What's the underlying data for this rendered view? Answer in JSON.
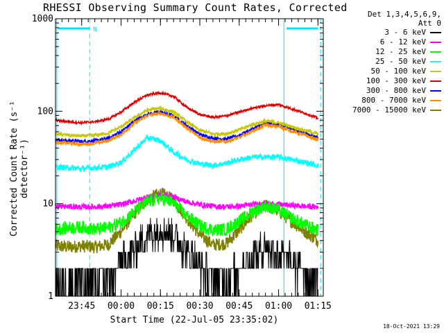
{
  "chart_data": {
    "type": "line",
    "title": "RHESSI Observing Summary Count Rates, Corrected",
    "xlabel": "Start Time (22-Jul-05 23:35:02)",
    "ylabel": "Corrected Count Rate (s⁻¹ detector⁻¹)",
    "y_scale": "log",
    "ylim": [
      1,
      1000
    ],
    "y_ticks": [
      1,
      10,
      100,
      1000
    ],
    "y_tick_labels": [
      "1",
      "10",
      "100",
      "1000"
    ],
    "xlim_minutes": [
      0,
      102
    ],
    "x_ticks": [
      {
        "label": "23:45",
        "minute": 9.97
      },
      {
        "label": "00:00",
        "minute": 24.97
      },
      {
        "label": "00:15",
        "minute": 39.97
      },
      {
        "label": "00:30",
        "minute": 54.97
      },
      {
        "label": "00:45",
        "minute": 69.97
      },
      {
        "label": "01:00",
        "minute": 84.97
      },
      {
        "label": "01:15",
        "minute": 99.97
      }
    ],
    "legend_header": [
      "Det 1,3,4,5,6,9,",
      "Att 0"
    ],
    "markers": {
      "cyan_dashed_lines_minutes": [
        13,
        101
      ],
      "cyan_solid_lines_minutes": [
        0.5,
        87
      ],
      "top_bars": [
        [
          1,
          13
        ],
        [
          88,
          100
        ]
      ],
      "marker_label": "N",
      "color": "#00e0ff"
    },
    "series": [
      {
        "name": "3 - 6 keV",
        "color": "#000000",
        "x": [
          0,
          5,
          10,
          15,
          20,
          25,
          30,
          35,
          40,
          45,
          50,
          55,
          60,
          65,
          70,
          75,
          80,
          85,
          90,
          95,
          100
        ],
        "y": [
          1.5,
          1.4,
          1.6,
          1.4,
          1.6,
          2.2,
          3.2,
          4.5,
          5.3,
          4.6,
          3.2,
          2.2,
          1.6,
          1.5,
          2.0,
          2.7,
          3.4,
          2.9,
          2.3,
          1.8,
          1.5
        ]
      },
      {
        "name": "6 - 12 keV",
        "color": "#ff00ff",
        "x": [
          0,
          5,
          10,
          15,
          20,
          25,
          30,
          35,
          40,
          45,
          50,
          55,
          60,
          65,
          70,
          75,
          80,
          85,
          90,
          95,
          100
        ],
        "y": [
          9.4,
          9.3,
          9.2,
          9.3,
          9.4,
          9.8,
          10.7,
          11.8,
          12.5,
          11.8,
          10.5,
          9.8,
          9.4,
          9.3,
          9.4,
          9.8,
          10.1,
          9.8,
          9.6,
          9.4,
          9.2
        ]
      },
      {
        "name": "12 - 25 keV",
        "color": "#00ff00",
        "x": [
          0,
          5,
          10,
          15,
          20,
          25,
          30,
          35,
          40,
          45,
          50,
          55,
          60,
          65,
          70,
          75,
          80,
          85,
          90,
          95,
          100
        ],
        "y": [
          5.3,
          5.5,
          5.6,
          5.3,
          5.5,
          6.3,
          8.2,
          10.5,
          11.5,
          10.2,
          7.4,
          5.8,
          5.2,
          5.3,
          6.5,
          8.2,
          9.5,
          8.6,
          7.0,
          5.9,
          5.2
        ]
      },
      {
        "name": "25 - 50 keV",
        "color": "#00ffff",
        "x": [
          0,
          5,
          10,
          15,
          20,
          25,
          30,
          35,
          40,
          45,
          50,
          55,
          60,
          65,
          70,
          75,
          80,
          85,
          90,
          95,
          100
        ],
        "y": [
          25,
          24.5,
          24,
          24.5,
          25,
          28,
          38,
          52,
          48,
          36,
          30,
          27,
          26,
          27.5,
          30,
          32,
          32,
          32,
          30,
          28,
          26
        ]
      },
      {
        "name": "50 - 100 keV",
        "color": "#c8c800",
        "x": [
          0,
          5,
          10,
          15,
          20,
          25,
          30,
          35,
          40,
          45,
          50,
          55,
          60,
          65,
          70,
          75,
          80,
          85,
          90,
          95,
          100
        ],
        "y": [
          57,
          55,
          54,
          55,
          58,
          68,
          85,
          103,
          108,
          98,
          77,
          62,
          57,
          57,
          63,
          72,
          78,
          75,
          68,
          62,
          57
        ]
      },
      {
        "name": "100 - 300 keV",
        "color": "#e00000",
        "x": [
          0,
          5,
          10,
          15,
          20,
          25,
          30,
          35,
          40,
          45,
          50,
          55,
          60,
          65,
          70,
          75,
          80,
          85,
          90,
          95,
          100
        ],
        "y": [
          80,
          77,
          75,
          77,
          82,
          98,
          125,
          150,
          158,
          145,
          110,
          92,
          86,
          89,
          98,
          108,
          115,
          118,
          106,
          95,
          84
        ]
      },
      {
        "name": "300 - 800 keV",
        "color": "#0000ff",
        "x": [
          0,
          5,
          10,
          15,
          20,
          25,
          30,
          35,
          40,
          45,
          50,
          55,
          60,
          65,
          70,
          75,
          80,
          85,
          90,
          95,
          100
        ],
        "y": [
          49,
          48,
          47,
          48,
          51,
          60,
          78,
          93,
          98,
          89,
          70,
          56,
          51,
          50,
          55,
          64,
          74,
          72,
          65,
          58,
          52
        ]
      },
      {
        "name": "800 - 7000 keV",
        "color": "#ff8c00",
        "x": [
          0,
          5,
          10,
          15,
          20,
          25,
          30,
          35,
          40,
          45,
          50,
          55,
          60,
          65,
          70,
          75,
          80,
          85,
          90,
          95,
          100
        ],
        "y": [
          46,
          45,
          44,
          45,
          48,
          56,
          74,
          90,
          95,
          86,
          66,
          52,
          47,
          47,
          52,
          61,
          71,
          68,
          61,
          55,
          49
        ]
      },
      {
        "name": "7000 - 15000 keV",
        "color": "#808000",
        "x": [
          0,
          5,
          10,
          15,
          20,
          25,
          30,
          35,
          40,
          45,
          50,
          55,
          60,
          65,
          70,
          75,
          80,
          85,
          90,
          95,
          100
        ],
        "y": [
          3.5,
          3.4,
          3.5,
          3.4,
          3.6,
          5.0,
          7.8,
          11.2,
          13.0,
          11.0,
          7.0,
          4.6,
          3.6,
          3.7,
          5.2,
          7.6,
          9.6,
          8.3,
          6.4,
          5.0,
          4.0
        ]
      }
    ]
  },
  "footer": {
    "timestamp": "18-Oct-2021 13:29"
  }
}
